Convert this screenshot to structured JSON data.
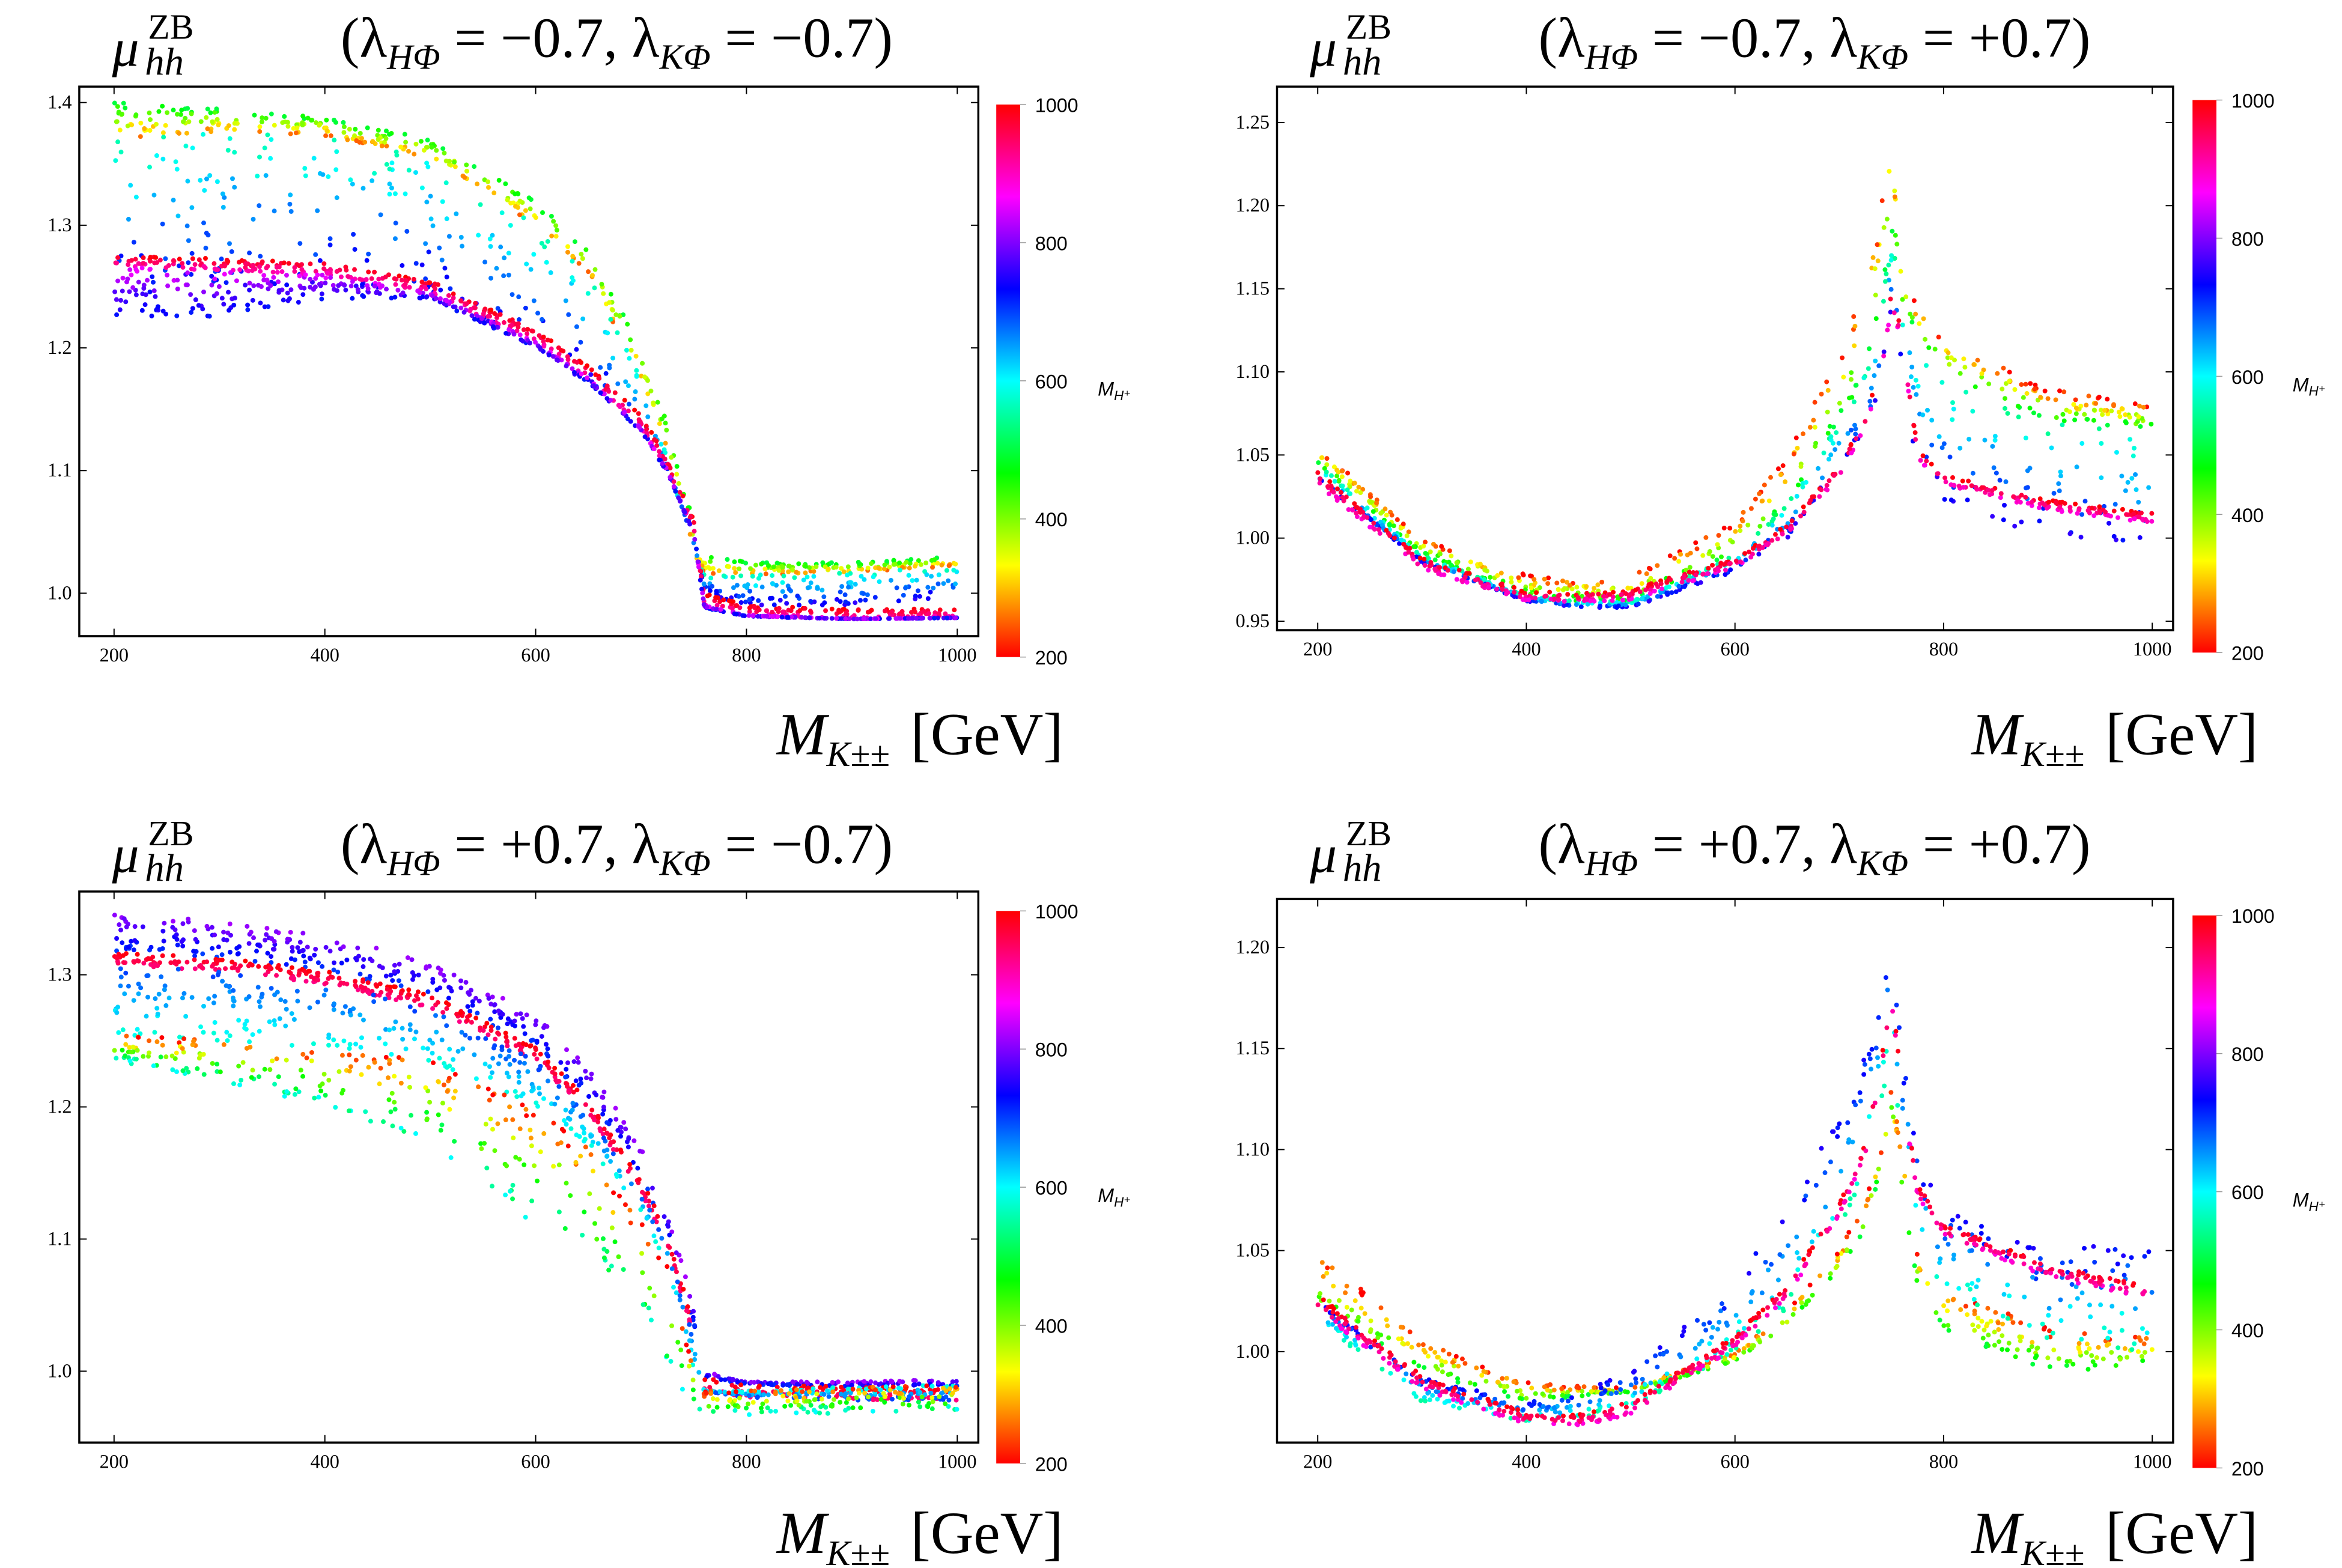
{
  "chart_data": [
    {
      "type": "scatter",
      "title": {
        "symbol": "μ",
        "sup": "ZB",
        "sub": "hh",
        "open": "(",
        "lambda": "λ",
        "l1_sub": "HΦ",
        "l1_rest": " = −0.7, ",
        "l2_sub": "KΦ",
        "l2_rest": " = −0.7)"
      },
      "xlabel": {
        "main": "M",
        "sub": "K±±",
        "unit": "[GeV]"
      },
      "xlim": [
        167,
        1020
      ],
      "ylim": [
        0.965,
        1.413
      ],
      "xticks": [
        "200",
        "400",
        "600",
        "800",
        "1000"
      ],
      "yticks": [
        "1.0",
        "1.1",
        "1.2",
        "1.3",
        "1.4"
      ],
      "colorbar": {
        "label_main": "M",
        "label_sub": "H⁺",
        "range": [
          200,
          1000
        ],
        "ticks": [
          "200",
          "400",
          "600",
          "800",
          "1000"
        ],
        "colormap": "rainbow hue (200 red → 1000 red)"
      },
      "bands": [
        {
          "mass_upper": 500,
          "mass_lower": 250,
          "x": [
            200,
            300,
            400,
            500,
            600,
            650,
            700,
            725,
            750,
            760,
            800,
            900,
            1000
          ],
          "y_upper": [
            1.4,
            1.395,
            1.388,
            1.37,
            1.32,
            1.28,
            1.2,
            1.14,
            1.06,
            1.035,
            1.025,
            1.025,
            1.03
          ],
          "y_lower": [
            1.37,
            1.375,
            1.373,
            1.355,
            1.3,
            1.26,
            1.175,
            1.11,
            1.03,
            1.015,
            1.015,
            1.017,
            1.022
          ]
        },
        {
          "mass_upper": 560,
          "mass_lower": 760,
          "x": [
            200,
            300,
            400,
            500,
            600,
            650,
            700,
            725,
            750,
            760,
            800,
            900,
            1000
          ],
          "y_upper": [
            1.37,
            1.375,
            1.373,
            1.355,
            1.3,
            1.26,
            1.175,
            1.11,
            1.03,
            1.015,
            1.015,
            1.017,
            1.022
          ],
          "y_lower": [
            1.24,
            1.24,
            1.25,
            1.24,
            1.2,
            1.17,
            1.13,
            1.1,
            1.05,
            1.0,
            0.99,
            0.99,
            0.995
          ]
        },
        {
          "mass_upper": 1000,
          "mass_lower": 900,
          "x": [
            200,
            300,
            400,
            500,
            600,
            650,
            700,
            725,
            750,
            760,
            800,
            900,
            1000
          ],
          "y_upper": [
            1.276,
            1.273,
            1.27,
            1.255,
            1.215,
            1.185,
            1.145,
            1.11,
            1.06,
            1.0,
            0.99,
            0.987,
            0.988
          ],
          "y_lower": [
            1.266,
            1.263,
            1.26,
            1.245,
            1.205,
            1.175,
            1.135,
            1.1,
            1.05,
            0.99,
            0.982,
            0.979,
            0.98
          ]
        },
        {
          "mass_upper": 860,
          "mass_lower": 720,
          "x": [
            200,
            300,
            400,
            500,
            600,
            650,
            700,
            725,
            750,
            760,
            800,
            900,
            1000
          ],
          "y_upper": [
            1.266,
            1.263,
            1.26,
            1.245,
            1.205,
            1.175,
            1.135,
            1.1,
            1.05,
            0.99,
            0.982,
            0.979,
            0.98
          ],
          "y_lower": [
            1.225,
            1.225,
            1.24,
            1.24,
            1.2,
            1.172,
            1.132,
            1.098,
            1.048,
            0.988,
            0.981,
            0.979,
            0.98
          ]
        }
      ]
    },
    {
      "type": "scatter",
      "title": {
        "symbol": "μ",
        "sup": "ZB",
        "sub": "hh",
        "open": "(",
        "lambda": "λ",
        "l1_sub": "HΦ",
        "l1_rest": " = −0.7, ",
        "l2_sub": "KΦ",
        "l2_rest": " = +0.7)"
      },
      "xlabel": {
        "main": "M",
        "sub": "K±±",
        "unit": "[GeV]"
      },
      "xlim": [
        161,
        1020
      ],
      "ylim": [
        0.9446,
        1.2716
      ],
      "xticks": [
        "200",
        "400",
        "600",
        "800",
        "1000"
      ],
      "yticks": [
        "0.95",
        "1.00",
        "1.05",
        "1.10",
        "1.15",
        "1.20",
        "1.25"
      ],
      "colorbar": {
        "label_main": "M",
        "label_sub": "H⁺",
        "range": [
          200,
          1000
        ],
        "ticks": [
          "200",
          "400",
          "600",
          "800",
          "1000"
        ],
        "colormap": "rainbow hue (200 red → 1000 red)"
      },
      "bands": [
        {
          "mass_upper": 200,
          "mass_lower": 500,
          "x": [
            200,
            300,
            400,
            450,
            500,
            600,
            650,
            700,
            725,
            740,
            750,
            760,
            775,
            800,
            900,
            1000
          ],
          "y_upper": [
            1.055,
            1.0,
            0.978,
            0.975,
            0.977,
            1.01,
            1.05,
            1.11,
            1.16,
            1.2,
            1.26,
            1.16,
            1.14,
            1.12,
            1.09,
            1.08
          ],
          "y_lower": [
            1.045,
            0.99,
            0.965,
            0.962,
            0.962,
            0.99,
            1.02,
            1.07,
            1.1,
            1.14,
            1.18,
            1.14,
            1.12,
            1.1,
            1.07,
            1.065
          ]
        },
        {
          "mass_upper": 540,
          "mass_lower": 760,
          "x": [
            200,
            300,
            400,
            450,
            500,
            600,
            650,
            700,
            725,
            740,
            750,
            760,
            775,
            800,
            900,
            1000
          ],
          "y_upper": [
            1.045,
            0.99,
            0.965,
            0.962,
            0.962,
            0.99,
            1.02,
            1.07,
            1.1,
            1.14,
            1.18,
            1.14,
            1.12,
            1.1,
            1.07,
            1.065
          ],
          "y_lower": [
            1.035,
            0.985,
            0.962,
            0.958,
            0.958,
            0.98,
            1.0,
            1.04,
            1.06,
            1.09,
            1.14,
            1.1,
            1.04,
            1.02,
            1.0,
            0.995
          ]
        },
        {
          "mass_upper": 1000,
          "mass_lower": 880,
          "x": [
            200,
            300,
            400,
            450,
            500,
            600,
            650,
            700,
            725,
            740,
            750,
            760,
            775,
            800,
            900,
            1000
          ],
          "y_upper": [
            1.04,
            0.988,
            0.968,
            0.967,
            0.969,
            0.988,
            1.008,
            1.043,
            1.073,
            1.103,
            1.15,
            1.123,
            1.053,
            1.038,
            1.023,
            1.015
          ],
          "y_lower": [
            1.032,
            0.981,
            0.962,
            0.961,
            0.963,
            0.982,
            1.002,
            1.037,
            1.067,
            1.097,
            1.14,
            1.117,
            1.047,
            1.032,
            1.017,
            1.009
          ]
        }
      ]
    },
    {
      "type": "scatter",
      "title": {
        "symbol": "μ",
        "sup": "ZB",
        "sub": "hh",
        "open": "(",
        "lambda": "λ",
        "l1_sub": "HΦ",
        "l1_rest": " = +0.7, ",
        "l2_sub": "KΦ",
        "l2_rest": " = −0.7)"
      },
      "xlabel": {
        "main": "M",
        "sub": "K±±",
        "unit": "[GeV]"
      },
      "xlim": [
        167,
        1020
      ],
      "ylim": [
        0.946,
        1.363
      ],
      "xticks": [
        "200",
        "400",
        "600",
        "800",
        "1000"
      ],
      "yticks": [
        "1.0",
        "1.1",
        "1.2",
        "1.3"
      ],
      "colorbar": {
        "label_main": "M",
        "label_sub": "H⁺",
        "range": [
          200,
          1000
        ],
        "ticks": [
          "200",
          "400",
          "600",
          "800",
          "1000"
        ],
        "colormap": "rainbow hue (200 red → 1000 red)"
      },
      "bands": [
        {
          "mass_upper": 820,
          "mass_lower": 700,
          "x": [
            200,
            300,
            400,
            500,
            600,
            650,
            700,
            725,
            750,
            760,
            800,
            900,
            1000
          ],
          "y_upper": [
            1.35,
            1.34,
            1.33,
            1.31,
            1.27,
            1.23,
            1.17,
            1.12,
            1.05,
            1.0,
            0.992,
            0.992,
            0.994
          ],
          "y_lower": [
            1.317,
            1.313,
            1.303,
            1.285,
            1.245,
            1.205,
            1.145,
            1.105,
            1.035,
            0.995,
            0.99,
            0.988,
            0.988
          ]
        },
        {
          "mass_upper": 1000,
          "mass_lower": 930,
          "x": [
            200,
            300,
            400,
            500,
            600,
            650,
            700,
            725,
            750,
            760,
            800,
            900,
            1000
          ],
          "y_upper": [
            1.317,
            1.313,
            1.303,
            1.285,
            1.245,
            1.205,
            1.145,
            1.105,
            1.035,
            0.995,
            0.99,
            0.988,
            0.988
          ],
          "y_lower": [
            1.307,
            1.303,
            1.293,
            1.275,
            1.235,
            1.195,
            1.135,
            1.095,
            1.025,
            0.985,
            0.98,
            0.978,
            0.978
          ]
        },
        {
          "mass_upper": 700,
          "mass_lower": 580,
          "x": [
            200,
            300,
            400,
            500,
            600,
            650,
            700,
            725,
            750,
            760,
            800,
            900,
            1000
          ],
          "y_upper": [
            1.307,
            1.303,
            1.293,
            1.275,
            1.235,
            1.195,
            1.135,
            1.095,
            1.025,
            0.985,
            0.98,
            0.978,
            0.978
          ],
          "y_lower": [
            1.255,
            1.25,
            1.245,
            1.235,
            1.2,
            1.17,
            1.12,
            1.08,
            1.0,
            0.985,
            0.985,
            0.988,
            0.99
          ]
        },
        {
          "mass_upper": 200,
          "mass_lower": 600,
          "x": [
            200,
            300,
            400,
            500,
            600,
            650,
            700,
            725,
            750,
            760,
            800,
            900,
            1000
          ],
          "y_upper": [
            1.255,
            1.25,
            1.245,
            1.235,
            1.2,
            1.17,
            1.12,
            1.08,
            1.0,
            0.985,
            0.985,
            0.988,
            0.99
          ],
          "y_lower": [
            1.235,
            1.22,
            1.2,
            1.17,
            1.11,
            1.08,
            1.04,
            1.0,
            0.975,
            0.968,
            0.967,
            0.968,
            0.97
          ]
        }
      ]
    },
    {
      "type": "scatter",
      "title": {
        "symbol": "μ",
        "sup": "ZB",
        "sub": "hh",
        "open": "(",
        "lambda": "λ",
        "l1_sub": "HΦ",
        "l1_rest": " = +0.7, ",
        "l2_sub": "KΦ",
        "l2_rest": " = +0.7)"
      },
      "xlabel": {
        "main": "M",
        "sub": "K±±",
        "unit": "[GeV]"
      },
      "xlim": [
        161,
        1020
      ],
      "ylim": [
        0.955,
        1.224
      ],
      "xticks": [
        "200",
        "400",
        "600",
        "800",
        "1000"
      ],
      "yticks": [
        "1.00",
        "1.05",
        "1.10",
        "1.15",
        "1.20"
      ],
      "colorbar": {
        "label_main": "M",
        "label_sub": "H⁺",
        "range": [
          200,
          1000
        ],
        "ticks": [
          "200",
          "400",
          "600",
          "800",
          "1000"
        ],
        "colormap": "rainbow hue (200 red → 1000 red)"
      },
      "bands": [
        {
          "mass_upper": 200,
          "mass_lower": 500,
          "x": [
            200,
            300,
            400,
            450,
            500,
            600,
            650,
            700,
            725,
            740,
            750,
            760,
            775,
            800,
            900,
            1000
          ],
          "y_upper": [
            1.05,
            1.005,
            0.985,
            0.983,
            0.982,
            1.0,
            1.02,
            1.05,
            1.075,
            1.1,
            1.13,
            1.1,
            1.05,
            1.03,
            1.012,
            1.008
          ],
          "y_lower": [
            1.02,
            0.99,
            0.975,
            0.978,
            0.98,
            0.995,
            1.012,
            1.04,
            1.06,
            1.09,
            1.12,
            1.08,
            1.03,
            1.01,
            0.99,
            0.993
          ]
        },
        {
          "mass_upper": 750,
          "mass_lower": 550,
          "x": [
            200,
            300,
            400,
            450,
            500,
            600,
            650,
            700,
            725,
            740,
            750,
            760,
            775,
            800,
            900,
            1000
          ],
          "y_upper": [
            1.025,
            0.987,
            0.975,
            0.98,
            0.99,
            1.035,
            1.07,
            1.12,
            1.15,
            1.18,
            1.215,
            1.15,
            1.1,
            1.07,
            1.05,
            1.055
          ],
          "y_lower": [
            1.015,
            0.975,
            0.965,
            0.966,
            0.972,
            1.0,
            1.02,
            1.06,
            1.09,
            1.12,
            1.15,
            1.1,
            1.05,
            1.03,
            1.005,
            1.0
          ]
        },
        {
          "mass_upper": 1000,
          "mass_lower": 880,
          "x": [
            200,
            300,
            400,
            450,
            500,
            600,
            650,
            700,
            725,
            740,
            750,
            760,
            775,
            800,
            900,
            1000
          ],
          "y_upper": [
            1.028,
            0.988,
            0.97,
            0.969,
            0.975,
            1.008,
            1.033,
            1.073,
            1.103,
            1.143,
            1.18,
            1.133,
            1.083,
            1.063,
            1.043,
            1.032
          ],
          "y_lower": [
            1.02,
            0.981,
            0.964,
            0.963,
            0.969,
            1.002,
            1.027,
            1.067,
            1.097,
            1.137,
            1.17,
            1.127,
            1.077,
            1.057,
            1.037,
            1.026
          ]
        }
      ]
    }
  ]
}
